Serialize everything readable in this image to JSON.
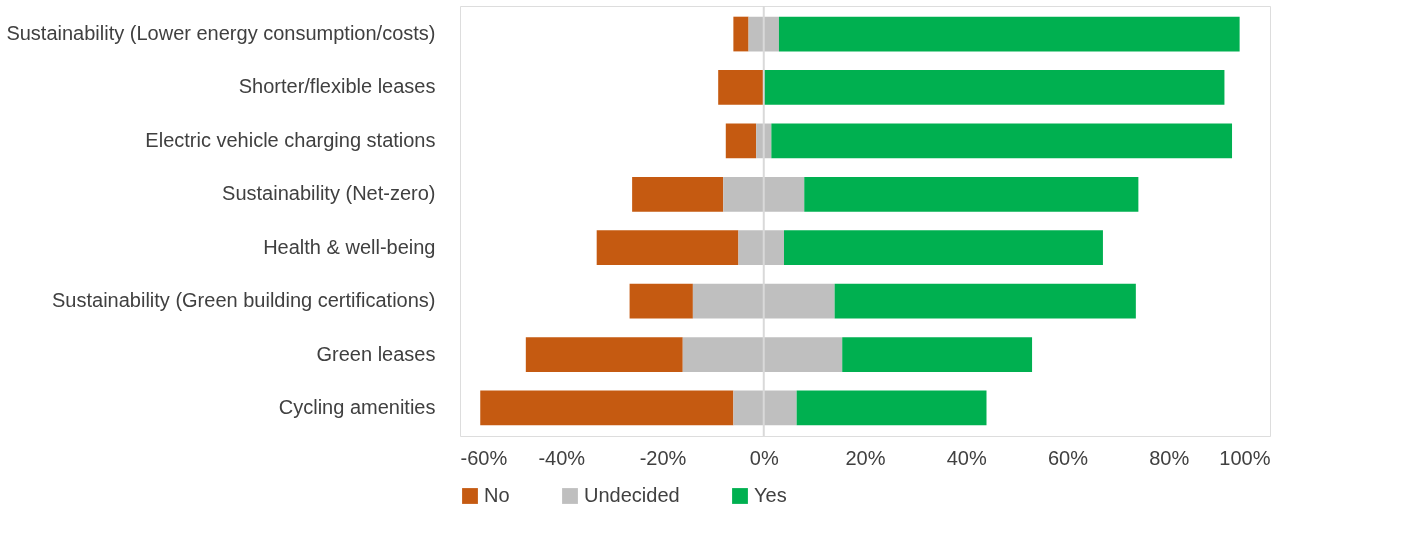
{
  "chart_data": {
    "type": "bar",
    "orientation": "horizontal",
    "categories": [
      "Sustainability (Lower energy consumption/costs)",
      "Shorter/flexible leases",
      "Electric vehicle charging stations",
      "Sustainability (Net-zero)",
      "Health & well-being ",
      "Sustainability (Green building certifications)",
      "Green leases",
      "Cycling amenities "
    ],
    "series": [
      {
        "name": "No",
        "color": "#c55a11",
        "base": [
          -6,
          -9,
          -7.5,
          -26,
          -33,
          -26.5,
          -47,
          -56
        ],
        "values": [
          3,
          9,
          6,
          18,
          28,
          12.5,
          31,
          50
        ]
      },
      {
        "name": "Undecided",
        "color": "#bfbfbf",
        "base": [
          -3,
          null,
          -1.5,
          -8,
          -5,
          -14,
          -16,
          -6
        ],
        "values": [
          6,
          null,
          3,
          16,
          9,
          28,
          31.5,
          12.5
        ]
      },
      {
        "name": "Yes",
        "color": "#00b050",
        "base": [
          3,
          0,
          1.5,
          8,
          4,
          14,
          15.5,
          6.5
        ],
        "values": [
          91,
          91,
          91,
          66,
          63,
          59.5,
          37.5,
          37.5
        ]
      }
    ],
    "xlim": [
      -60,
      100
    ],
    "xticks": [
      {
        "value": -60,
        "label": "-60%"
      },
      {
        "value": -40,
        "label": "-40%"
      },
      {
        "value": -20,
        "label": "-20%"
      },
      {
        "value": 0,
        "label": "0%"
      },
      {
        "value": 20,
        "label": "20%"
      },
      {
        "value": 40,
        "label": "40%"
      },
      {
        "value": 60,
        "label": "60%"
      },
      {
        "value": 80,
        "label": "80%"
      },
      {
        "value": 100,
        "label": "100%"
      }
    ],
    "ref_lines": [
      {
        "axis": "x",
        "value": 0,
        "color": "#d9d9d9"
      }
    ],
    "grid": false,
    "legend": "bottom"
  }
}
